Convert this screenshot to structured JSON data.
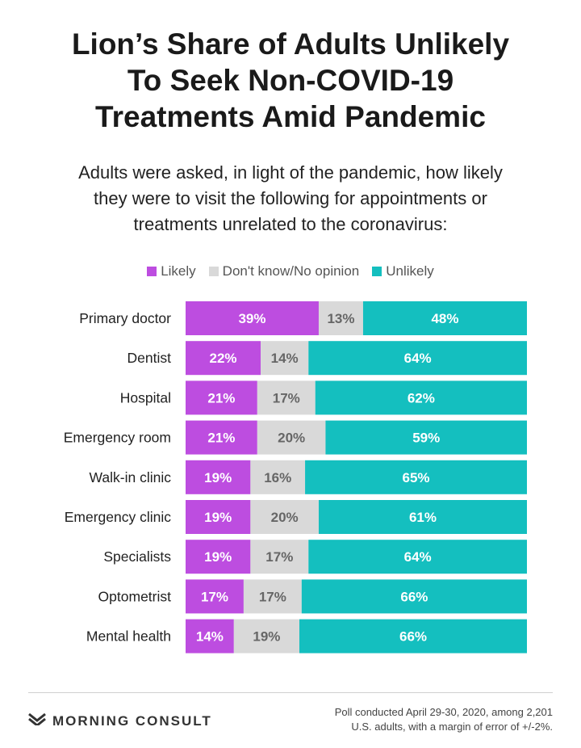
{
  "header": {
    "title": "Lion’s Share of Adults Unlikely\nTo Seek Non-COVID-19\nTreatments Amid Pandemic",
    "subtitle": "Adults were asked, in light of the pandemic, how likely\nthey were to visit the following for appointments or\ntreatments unrelated to the coronavirus:"
  },
  "colors": {
    "likely": "#bd4de0",
    "dont_know": "#d9d9d9",
    "unlikely": "#14bfbf",
    "likely_text": "#ffffff",
    "dont_know_text": "#666666",
    "unlikely_text": "#ffffff"
  },
  "legend": {
    "likely": "Likely",
    "dont_know": "Don't know/No opinion",
    "unlikely": "Unlikely"
  },
  "chart_data": {
    "type": "bar",
    "orientation": "horizontal",
    "stacked": true,
    "unit": "%",
    "categories": [
      "Primary doctor",
      "Dentist",
      "Hospital",
      "Emergency room",
      "Walk-in clinic",
      "Emergency clinic",
      "Specialists",
      "Optometrist",
      "Mental health"
    ],
    "series": [
      {
        "name": "Likely",
        "values": [
          39,
          22,
          21,
          21,
          19,
          19,
          19,
          17,
          14
        ]
      },
      {
        "name": "Don't know/No opinion",
        "values": [
          13,
          14,
          17,
          20,
          16,
          20,
          17,
          17,
          19
        ]
      },
      {
        "name": "Unlikely",
        "values": [
          48,
          64,
          62,
          59,
          65,
          61,
          64,
          66,
          66
        ]
      }
    ],
    "legend_position": "top",
    "grid": false
  },
  "footer": {
    "brand": "MORNING CONSULT",
    "note": "Poll conducted April 29-30, 2020, among 2,201\nU.S. adults, with a margin of error of +/-2%."
  }
}
